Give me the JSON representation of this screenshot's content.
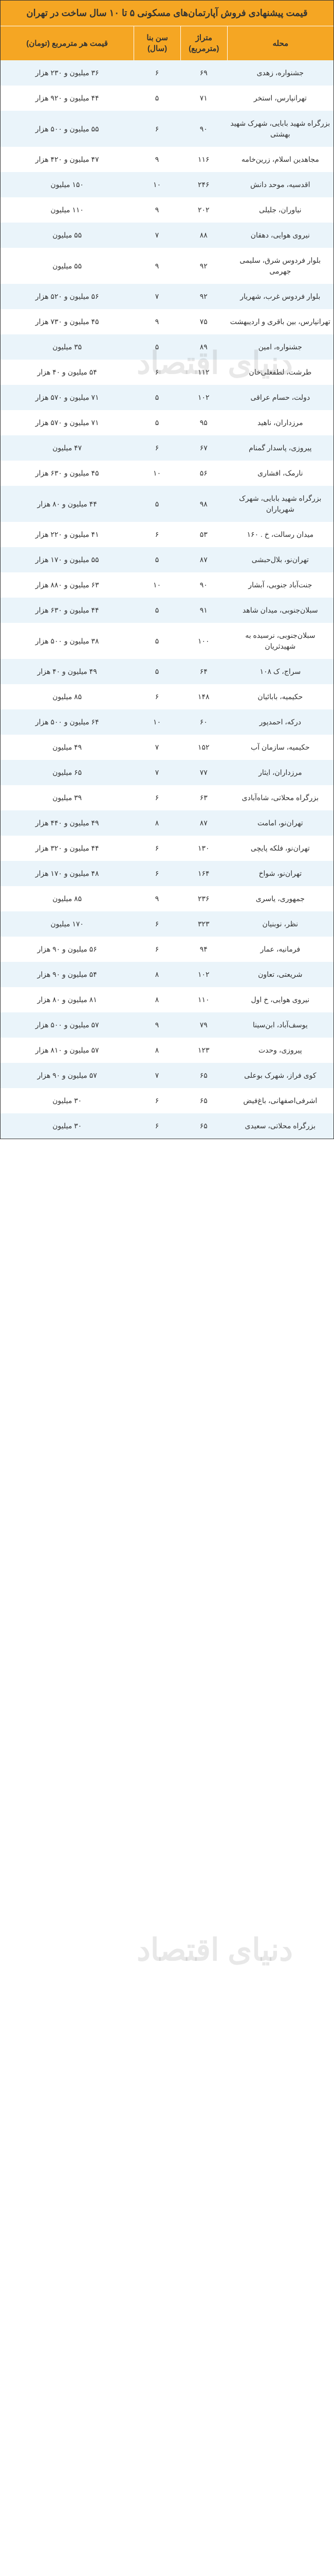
{
  "title": "قیمت پیشنهادی فروش آپارتمان‌های مسکونی ۵ تا ۱۰ سال ساخت در تهران",
  "headers": {
    "neighborhood": "محله",
    "area": "متراژ (مترمربع)",
    "age": "سن بنا (سال)",
    "price": "قیمت هر مترمربع (تومان)"
  },
  "colors": {
    "header_bg": "#f5a623",
    "row_even": "#eaf4fa",
    "row_odd": "#ffffff",
    "text": "#333333"
  },
  "watermark_text": "دنیای اقتصاد",
  "rows": [
    {
      "neighborhood": "جشنواره، زهدی",
      "area": "۶۹",
      "age": "۶",
      "price": "۳۶ میلیون و ۲۳۰ هزار"
    },
    {
      "neighborhood": "تهرانپارس، استخر",
      "area": "۷۱",
      "age": "۵",
      "price": "۴۴ میلیون و ۹۲۰ هزار"
    },
    {
      "neighborhood": "بزرگراه شهید بابایی، شهرک شهید بهشتی",
      "area": "۹۰",
      "age": "۶",
      "price": "۵۵ میلیون و ۵۰۰ هزار"
    },
    {
      "neighborhood": "مجاهدین اسلام، زرین‌خامه",
      "area": "۱۱۶",
      "age": "۹",
      "price": "۴۷ میلیون و ۴۲۰ هزار"
    },
    {
      "neighborhood": "اقدسیه، موحد دانش",
      "area": "۲۴۶",
      "age": "۱۰",
      "price": "۱۵۰ میلیون"
    },
    {
      "neighborhood": "نیاوران، جلیلی",
      "area": "۲۰۲",
      "age": "۹",
      "price": "۱۱۰ میلیون"
    },
    {
      "neighborhood": "نیروی هوایی، دهقان",
      "area": "۸۸",
      "age": "۷",
      "price": "۵۵ میلیون"
    },
    {
      "neighborhood": "بلوار فردوس شرق، سلیمی جهرمی",
      "area": "۹۲",
      "age": "۹",
      "price": "۵۵ میلیون"
    },
    {
      "neighborhood": "بلوار فردوس غرب، شهریار",
      "area": "۹۲",
      "age": "۷",
      "price": "۵۶ میلیون و ۵۲۰ هزار"
    },
    {
      "neighborhood": "تهرانپارس، بین باقری و اردیبهشت",
      "area": "۷۵",
      "age": "۹",
      "price": "۴۵ میلیون و ۷۳۰ هزار"
    },
    {
      "neighborhood": "جشنواره، امین",
      "area": "۸۹",
      "age": "۵",
      "price": "۳۵ میلیون"
    },
    {
      "neighborhood": "طرشت، لطفعلی‌خان",
      "area": "۱۱۲",
      "age": "۶",
      "price": "۵۴ میلیون و ۴۰ هزار"
    },
    {
      "neighborhood": "دولت، حسام عراقی",
      "area": "۱۰۲",
      "age": "۵",
      "price": "۷۱ میلیون و ۵۷۰ هزار"
    },
    {
      "neighborhood": "مرزداران، ناهید",
      "area": "۹۵",
      "age": "۵",
      "price": "۷۱ میلیون و ۵۷۰ هزار"
    },
    {
      "neighborhood": "پیروزی، پاسدار گمنام",
      "area": "۶۷",
      "age": "۶",
      "price": "۴۷ میلیون"
    },
    {
      "neighborhood": "نارمک، افشاری",
      "area": "۵۶",
      "age": "۱۰",
      "price": "۴۵ میلیون و ۶۳۰ هزار"
    },
    {
      "neighborhood": "بزرگراه شهید بابایی، شهرک شهریاران",
      "area": "۹۸",
      "age": "۵",
      "price": "۴۴ میلیون و ۸۰ هزار"
    },
    {
      "neighborhood": "میدان رسالت، خ . ۱۶۰",
      "area": "۵۳",
      "age": "۶",
      "price": "۴۱ میلیون و ۲۲۰ هزار"
    },
    {
      "neighborhood": "تهران‌نو، بلال‌حبشی",
      "area": "۸۷",
      "age": "۵",
      "price": "۵۵ میلیون و ۱۷۰ هزار"
    },
    {
      "neighborhood": "جنت‌آباد جنوبی، آبشار",
      "area": "۹۰",
      "age": "۱۰",
      "price": "۶۳ میلیون و ۸۸۰ هزار"
    },
    {
      "neighborhood": "سبلان‌جنوبی، میدان شاهد",
      "area": "۹۱",
      "age": "۵",
      "price": "۴۴ میلیون و ۶۳۰ هزار"
    },
    {
      "neighborhood": "سبلان‌جنوبی، نرسیده به شهیدثریان",
      "area": "۱۰۰",
      "age": "۵",
      "price": "۳۸ میلیون و ۵۰۰ هزار"
    },
    {
      "neighborhood": "سراج، ک ۱۰۸",
      "area": "۶۴",
      "age": "۵",
      "price": "۴۹ میلیون و ۴۰ هزار"
    },
    {
      "neighborhood": "حکیمیه، بابائیان",
      "area": "۱۴۸",
      "age": "۶",
      "price": "۸۵ میلیون"
    },
    {
      "neighborhood": "درکه، احمدپور",
      "area": "۶۰",
      "age": "۱۰",
      "price": "۶۴ میلیون و ۵۰۰ هزار"
    },
    {
      "neighborhood": "حکیمیه، سازمان آب",
      "area": "۱۵۲",
      "age": "۷",
      "price": "۴۹ میلیون"
    },
    {
      "neighborhood": "مرزداران، ایثار",
      "area": "۷۷",
      "age": "۷",
      "price": "۶۵ میلیون"
    },
    {
      "neighborhood": "بزرگراه محلاتی، شاه‌آبادی",
      "area": "۶۳",
      "age": "۶",
      "price": "۳۹ میلیون"
    },
    {
      "neighborhood": "تهران‌نو، امامت",
      "area": "۸۷",
      "age": "۸",
      "price": "۴۹ میلیون و ۴۴۰ هزار"
    },
    {
      "neighborhood": "تهران‌نو، فلکه پایچی",
      "area": "۱۳۰",
      "age": "۶",
      "price": "۴۴ میلیون و ۳۲۰ هزار"
    },
    {
      "neighborhood": "تهران‌نو، شواخ",
      "area": "۱۶۴",
      "age": "۶",
      "price": "۴۸ میلیون و ۱۷۰ هزار"
    },
    {
      "neighborhood": "جمهوری، یاسری",
      "area": "۲۳۶",
      "age": "۹",
      "price": "۸۵ میلیون"
    },
    {
      "neighborhood": "نظر، نوبنیان",
      "area": "۳۲۳",
      "age": "۶",
      "price": "۱۷۰ میلیون"
    },
    {
      "neighborhood": "فرمانیه، عمار",
      "area": "۹۴",
      "age": "۶",
      "price": "۵۶ میلیون و ۹۰ هزار"
    },
    {
      "neighborhood": "شریعتی، تعاون",
      "area": "۱۰۲",
      "age": "۸",
      "price": "۵۴ میلیون و ۹۰ هزار"
    },
    {
      "neighborhood": "نیروی هوایی، خ اول",
      "area": "۱۱۰",
      "age": "۸",
      "price": "۸۱ میلیون و ۸۰ هزار"
    },
    {
      "neighborhood": "یوسف‌آباد، ابن‌سینا",
      "area": "۷۹",
      "age": "۹",
      "price": "۵۷ میلیون و ۵۰۰ هزار"
    },
    {
      "neighborhood": "پیروزی، وحدت",
      "area": "۱۲۳",
      "age": "۸",
      "price": "۵۷ میلیون و ۸۱۰ هزار"
    },
    {
      "neighborhood": "کوی فراز، شهرک بوعلی",
      "area": "۶۵",
      "age": "۷",
      "price": "۵۷ میلیون و ۹۰ هزار"
    },
    {
      "neighborhood": "اشرفی‌اصفهانی، باغ‌فیض",
      "area": "۶۵",
      "age": "۶",
      "price": "۳۰ میلیون"
    },
    {
      "neighborhood": "بزرگراه محلاتی، سعیدی",
      "area": "۶۵",
      "age": "۶",
      "price": "۳۰ میلیون"
    }
  ]
}
